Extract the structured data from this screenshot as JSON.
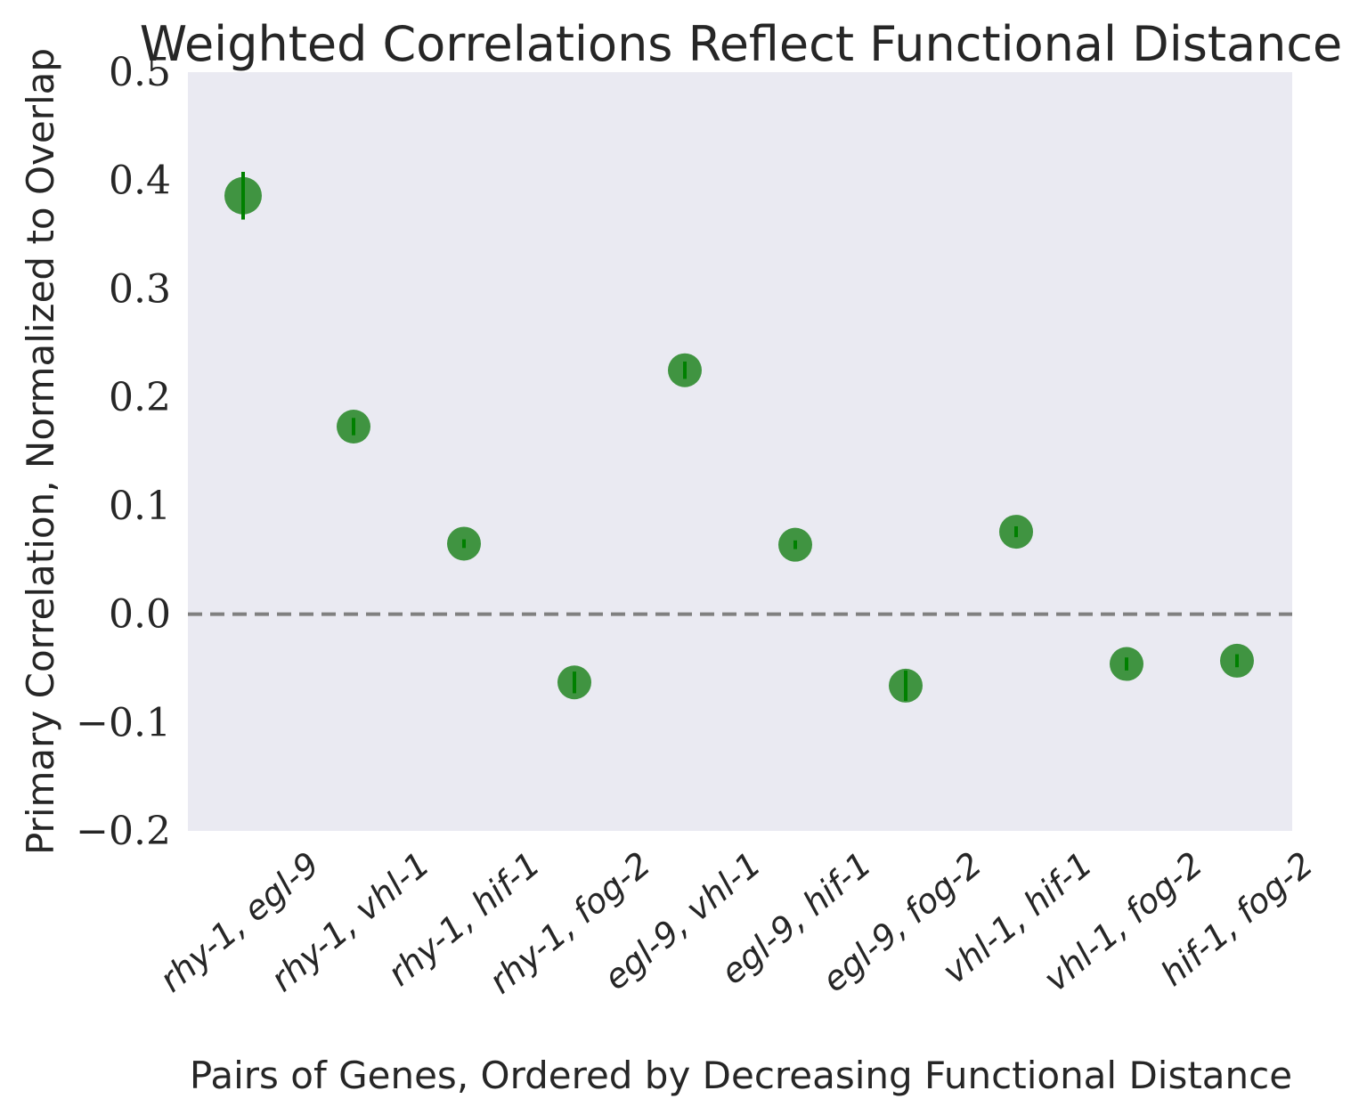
{
  "chart_data": {
    "type": "scatter",
    "title": "Weighted Correlations Reflect Functional Distance",
    "xlabel": "Pairs of Genes, Ordered by Decreasing Functional Distance",
    "ylabel": "Primary Correlation, Normalized to Overlap",
    "ylim": [
      -0.2,
      0.5
    ],
    "yticks": [
      -0.2,
      -0.1,
      0.0,
      0.1,
      0.2,
      0.3,
      0.4,
      0.5
    ],
    "ytick_labels": [
      "−0.2",
      "−0.1",
      "0.0",
      "0.1",
      "0.2",
      "0.3",
      "0.4",
      "0.5"
    ],
    "grid": false,
    "reference_line": 0.0,
    "background_color": "#eaeaf2",
    "marker_color": "#2e8b2e",
    "errorbar_color": "#008000",
    "reference_line_color": "#808080",
    "categories": [
      "rhy-1, egl-9",
      "rhy-1, vhl-1",
      "rhy-1, hif-1",
      "rhy-1, fog-2",
      "egl-9, vhl-1",
      "egl-9, hif-1",
      "egl-9, fog-2",
      "vhl-1, hif-1",
      "vhl-1, fog-2",
      "hif-1, fog-2"
    ],
    "values": [
      0.386,
      0.173,
      0.065,
      -0.063,
      0.225,
      0.064,
      -0.066,
      0.076,
      -0.046,
      -0.043
    ],
    "errors": [
      0.022,
      0.008,
      0.004,
      0.01,
      0.008,
      0.004,
      0.014,
      0.005,
      0.006,
      0.006
    ]
  }
}
